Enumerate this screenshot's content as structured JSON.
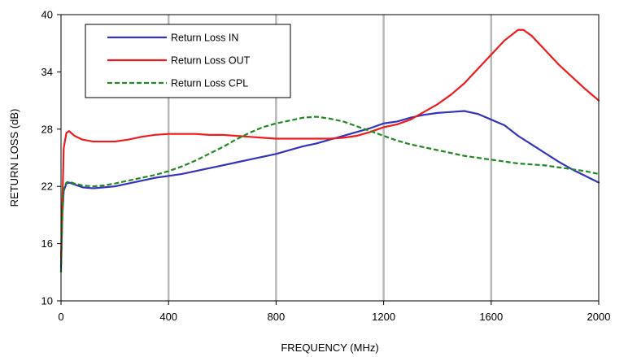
{
  "chart_data": {
    "type": "line",
    "title": "",
    "xlabel": "FREQUENCY (MHz)",
    "ylabel": "RETURN LOSS (dB)",
    "xlim": [
      0,
      2000
    ],
    "ylim": [
      10,
      40
    ],
    "x_ticks": [
      0,
      400,
      800,
      1200,
      1600,
      2000
    ],
    "y_ticks": [
      10,
      16,
      22,
      28,
      34,
      40
    ],
    "x_tick_labels": [
      "0",
      "400",
      "800",
      "1200",
      "1600",
      "2000"
    ],
    "y_tick_labels": [
      "10",
      "16",
      "22",
      "28",
      "34",
      "40"
    ],
    "grid": "vertical",
    "grid_color": "#b8b8b8",
    "legend_position": "top-left",
    "series": [
      {
        "name": "Return Loss IN",
        "color": "#3333bb",
        "style": "solid",
        "x": [
          0,
          5,
          10,
          20,
          30,
          50,
          80,
          120,
          160,
          200,
          250,
          300,
          350,
          400,
          450,
          500,
          550,
          600,
          650,
          700,
          750,
          800,
          850,
          900,
          950,
          1000,
          1050,
          1100,
          1150,
          1200,
          1250,
          1300,
          1350,
          1400,
          1450,
          1500,
          1550,
          1600,
          1650,
          1700,
          1750,
          1800,
          1850,
          1900,
          1950,
          2000
        ],
        "y": [
          13.5,
          19,
          21.5,
          22.3,
          22.4,
          22.2,
          21.9,
          21.8,
          21.9,
          22.0,
          22.3,
          22.6,
          22.9,
          23.1,
          23.3,
          23.6,
          23.9,
          24.2,
          24.5,
          24.8,
          25.1,
          25.4,
          25.8,
          26.2,
          26.5,
          26.9,
          27.3,
          27.7,
          28.1,
          28.6,
          28.8,
          29.2,
          29.5,
          29.7,
          29.8,
          29.9,
          29.6,
          29.0,
          28.4,
          27.3,
          26.4,
          25.5,
          24.6,
          23.8,
          23.1,
          22.4
        ]
      },
      {
        "name": "Return Loss OUT",
        "color": "#ee1c1c",
        "style": "solid",
        "x": [
          0,
          5,
          10,
          20,
          30,
          50,
          80,
          120,
          160,
          200,
          250,
          300,
          350,
          400,
          450,
          500,
          550,
          600,
          650,
          700,
          750,
          800,
          850,
          900,
          950,
          1000,
          1050,
          1100,
          1150,
          1200,
          1250,
          1300,
          1350,
          1400,
          1450,
          1500,
          1550,
          1600,
          1650,
          1700,
          1720,
          1750,
          1800,
          1850,
          1900,
          1950,
          2000
        ],
        "y": [
          14.5,
          20,
          26,
          27.6,
          27.8,
          27.3,
          26.9,
          26.7,
          26.7,
          26.7,
          26.9,
          27.2,
          27.4,
          27.5,
          27.5,
          27.5,
          27.4,
          27.4,
          27.3,
          27.2,
          27.1,
          27.0,
          27.0,
          27.0,
          27.0,
          27.0,
          27.1,
          27.3,
          27.7,
          28.2,
          28.5,
          29.0,
          29.8,
          30.6,
          31.6,
          32.8,
          34.3,
          35.8,
          37.3,
          38.4,
          38.4,
          37.8,
          36.3,
          34.8,
          33.5,
          32.2,
          31.0
        ]
      },
      {
        "name": "Return Loss CPL",
        "color": "#1f8a1f",
        "style": "dashed",
        "x": [
          0,
          5,
          10,
          20,
          30,
          50,
          80,
          120,
          160,
          200,
          250,
          300,
          350,
          400,
          450,
          500,
          550,
          600,
          650,
          700,
          750,
          800,
          850,
          900,
          950,
          1000,
          1050,
          1100,
          1150,
          1200,
          1250,
          1300,
          1350,
          1400,
          1450,
          1500,
          1550,
          1600,
          1650,
          1700,
          1750,
          1800,
          1850,
          1900,
          1950,
          2000
        ],
        "y": [
          13,
          19,
          21.8,
          22.4,
          22.5,
          22.3,
          22.1,
          22.0,
          22.1,
          22.3,
          22.6,
          22.9,
          23.2,
          23.6,
          24.1,
          24.7,
          25.4,
          26.1,
          26.9,
          27.6,
          28.2,
          28.6,
          28.9,
          29.2,
          29.3,
          29.1,
          28.8,
          28.3,
          27.8,
          27.3,
          26.8,
          26.4,
          26.1,
          25.8,
          25.5,
          25.2,
          25.0,
          24.8,
          24.6,
          24.4,
          24.3,
          24.2,
          24.0,
          23.8,
          23.6,
          23.3
        ]
      }
    ]
  }
}
